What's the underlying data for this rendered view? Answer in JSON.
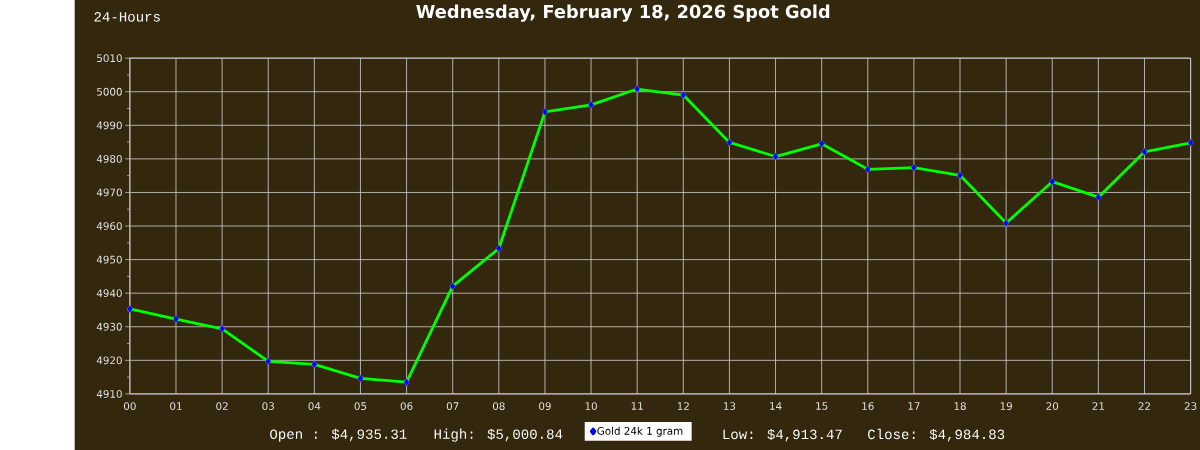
{
  "chart_data": {
    "type": "line",
    "title": "Wednesday, February 18, 2026 Spot Gold",
    "subtitle": "24-Hours",
    "categories": [
      "00",
      "01",
      "02",
      "03",
      "04",
      "05",
      "06",
      "07",
      "08",
      "09",
      "10",
      "11",
      "12",
      "13",
      "14",
      "15",
      "16",
      "17",
      "18",
      "19",
      "20",
      "21",
      "22",
      "23"
    ],
    "series": [
      {
        "name": "Gold 24k 1 gram",
        "color": "#00ff00",
        "colors": [
          "#0000ff",
          "#0000ff",
          "#0000ff",
          "#0000ff",
          "#0000ff",
          "#0000ff",
          "#0000ff",
          "#0000ff",
          "#0000ff",
          "#0000ff",
          "#0000ff",
          "#0000ff",
          "#0000ff",
          "#0000ff",
          "#0000ff",
          "#0000ff",
          "#0000ff",
          "#0000ff",
          "#0000ff",
          "#0000ff",
          "#0000ff",
          "#0000ff",
          "#0000ff",
          "#0000ff"
        ],
        "values": [
          4935.3,
          4932.3,
          4929.4,
          4919.7,
          4918.8,
          4914.6,
          4913.5,
          4942.1,
          4953.3,
          4994.0,
          4996.1,
          5000.8,
          4999.0,
          4984.9,
          4980.7,
          4984.5,
          4976.9,
          4977.4,
          4975.1,
          4960.9,
          4973.2,
          4968.6,
          4982.1,
          4984.8
        ]
      }
    ],
    "ylim": [
      4910,
      5010
    ],
    "yticks": [
      4910,
      {
        "value": 4915,
        "label": null
      },
      4920,
      {
        "value": 4925,
        "label": null
      },
      4930,
      {
        "value": 4935,
        "label": null
      },
      4940,
      {
        "value": 4945,
        "label": null
      },
      4950,
      {
        "value": 4955,
        "label": null
      },
      4960,
      {
        "value": 4965,
        "label": null
      },
      4970,
      {
        "value": 4975,
        "label": null
      },
      4980,
      {
        "value": 4985,
        "label": null
      },
      4990,
      {
        "value": 4995,
        "label": null
      },
      5000,
      {
        "value": 5005,
        "label": null
      },
      5010
    ],
    "grid": true,
    "legend": "bottom",
    "marker": "diamond",
    "line_style": "solid",
    "annotations": [
      "Open : $4,935.31",
      "High: $5,000.84",
      "Low: $4,913.47",
      "Close: $4,984.83"
    ]
  }
}
